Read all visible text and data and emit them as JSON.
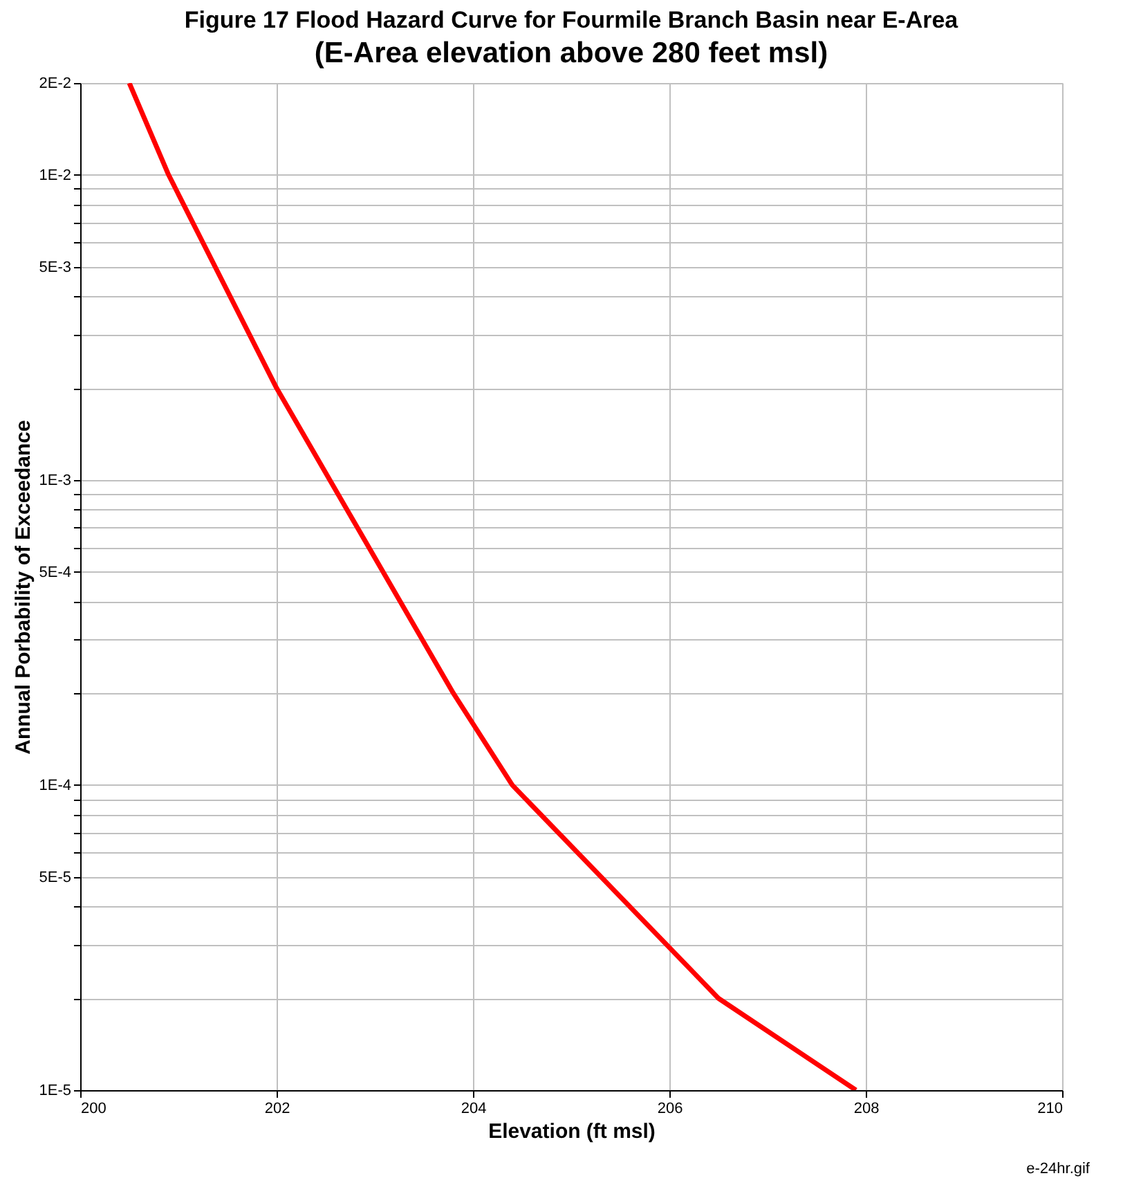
{
  "chart_data": {
    "type": "line",
    "title": "Figure 17  Flood Hazard Curve for Fourmile Branch Basin near E-Area",
    "subtitle": "(E-Area elevation above 280 feet msl)",
    "xlabel": "Elevation (ft msl)",
    "ylabel": "Annual Porbability of Exceedance",
    "annotations": [
      "e-24hr.gif"
    ],
    "series": [
      {
        "color": "#ff0000",
        "x": [
          200.5,
          200.9,
          202.0,
          203.8,
          204.4,
          206.5,
          207.9
        ],
        "values": [
          0.02,
          0.01,
          0.002,
          0.0002,
          0.0001,
          2e-05,
          1e-05
        ]
      }
    ],
    "xlim": [
      200,
      210
    ],
    "xticks": [
      200,
      202,
      204,
      206,
      208,
      210
    ],
    "ylim": [
      1e-05,
      0.02
    ],
    "log": "y",
    "yticks": [
      {
        "value": 1e-05,
        "label": "1E-5"
      },
      {
        "value": 2e-05,
        "label": null
      },
      {
        "value": 3e-05,
        "label": null
      },
      {
        "value": 4e-05,
        "label": null
      },
      {
        "value": 5e-05,
        "label": "5E-5"
      },
      {
        "value": 6e-05,
        "label": null
      },
      {
        "value": 7e-05,
        "label": null
      },
      {
        "value": 8e-05,
        "label": null
      },
      {
        "value": 9e-05,
        "label": null
      },
      {
        "value": 0.0001,
        "label": "1E-4"
      },
      {
        "value": 0.0002,
        "label": null
      },
      {
        "value": 0.0003,
        "label": null
      },
      {
        "value": 0.0004,
        "label": null
      },
      {
        "value": 0.0005,
        "label": "5E-4"
      },
      {
        "value": 0.0006,
        "label": null
      },
      {
        "value": 0.0007,
        "label": null
      },
      {
        "value": 0.0008,
        "label": null
      },
      {
        "value": 0.0009,
        "label": null
      },
      {
        "value": 0.001,
        "label": "1E-3"
      },
      {
        "value": 0.002,
        "label": null
      },
      {
        "value": 0.003,
        "label": null
      },
      {
        "value": 0.004,
        "label": null
      },
      {
        "value": 0.005,
        "label": "5E-3"
      },
      {
        "value": 0.006,
        "label": null
      },
      {
        "value": 0.007,
        "label": null
      },
      {
        "value": 0.008,
        "label": null
      },
      {
        "value": 0.009,
        "label": null
      },
      {
        "value": 0.01,
        "label": "1E-2"
      },
      {
        "value": 0.02,
        "label": "2E-2"
      }
    ],
    "grid": true,
    "marker": "none",
    "line_style": "solid"
  }
}
